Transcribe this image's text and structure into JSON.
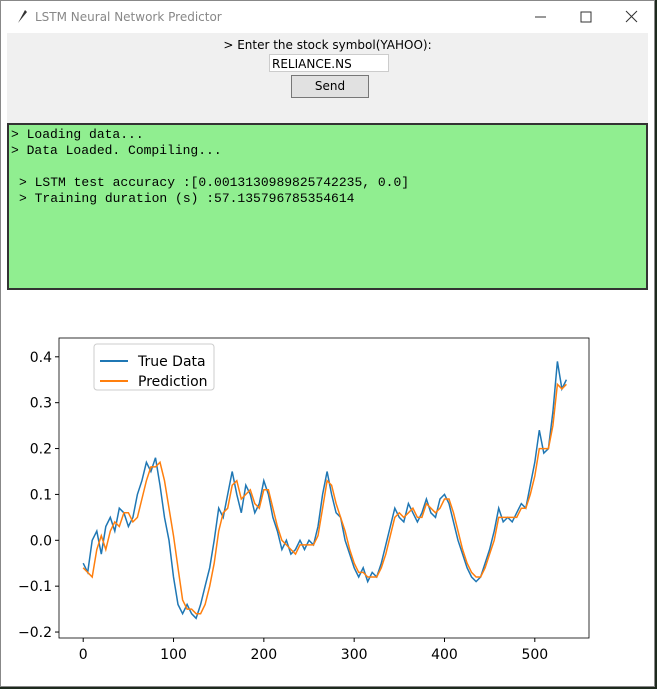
{
  "window": {
    "title": "LSTM Neural Network Predictor"
  },
  "form": {
    "label": "> Enter the stock symbol(YAHOO):",
    "input_value": "RELIANCE.NS",
    "button": "Send"
  },
  "console": {
    "lines": [
      "> Loading data...",
      "> Data Loaded. Compiling...",
      "> LSTM test accuracy :[0.0013130989825742235, 0.0]",
      "> Training duration (s) :57.135796785354614"
    ]
  },
  "chart_data": {
    "type": "line",
    "x": [
      0,
      5,
      10,
      15,
      20,
      25,
      30,
      35,
      40,
      45,
      50,
      55,
      60,
      65,
      70,
      75,
      80,
      85,
      90,
      95,
      100,
      105,
      110,
      115,
      120,
      125,
      130,
      135,
      140,
      145,
      150,
      155,
      160,
      165,
      170,
      175,
      180,
      185,
      190,
      195,
      200,
      205,
      210,
      215,
      220,
      225,
      230,
      235,
      240,
      245,
      250,
      255,
      260,
      265,
      270,
      275,
      280,
      285,
      290,
      295,
      300,
      305,
      310,
      315,
      320,
      325,
      330,
      335,
      340,
      345,
      350,
      355,
      360,
      365,
      370,
      375,
      380,
      385,
      390,
      395,
      400,
      405,
      410,
      415,
      420,
      425,
      430,
      435,
      440,
      445,
      450,
      455,
      460,
      465,
      470,
      475,
      480,
      485,
      490,
      495,
      500,
      505,
      510,
      515,
      520,
      525,
      530,
      535
    ],
    "series": [
      {
        "name": "True Data",
        "color": "#1f77b4",
        "values": [
          -0.05,
          -0.07,
          0.0,
          0.02,
          -0.03,
          0.03,
          0.05,
          0.02,
          0.07,
          0.06,
          0.03,
          0.05,
          0.1,
          0.13,
          0.17,
          0.15,
          0.18,
          0.12,
          0.05,
          0.0,
          -0.08,
          -0.14,
          -0.16,
          -0.14,
          -0.16,
          -0.17,
          -0.14,
          -0.1,
          -0.06,
          0.0,
          0.07,
          0.05,
          0.1,
          0.15,
          0.1,
          0.06,
          0.12,
          0.1,
          0.06,
          0.08,
          0.13,
          0.1,
          0.05,
          0.02,
          -0.02,
          0.0,
          -0.03,
          -0.02,
          0.0,
          -0.02,
          0.0,
          -0.01,
          0.03,
          0.1,
          0.15,
          0.1,
          0.06,
          0.05,
          0.0,
          -0.03,
          -0.06,
          -0.08,
          -0.06,
          -0.09,
          -0.07,
          -0.08,
          -0.05,
          -0.01,
          0.03,
          0.07,
          0.05,
          0.04,
          0.08,
          0.06,
          0.04,
          0.06,
          0.09,
          0.06,
          0.05,
          0.09,
          0.1,
          0.08,
          0.04,
          0.0,
          -0.03,
          -0.06,
          -0.08,
          -0.09,
          -0.08,
          -0.05,
          -0.02,
          0.02,
          0.07,
          0.04,
          0.05,
          0.04,
          0.06,
          0.08,
          0.07,
          0.12,
          0.17,
          0.24,
          0.19,
          0.2,
          0.28,
          0.39,
          0.33,
          0.35
        ]
      },
      {
        "name": "Prediction",
        "color": "#ff7f0e",
        "values": [
          -0.06,
          -0.07,
          -0.08,
          -0.02,
          0.01,
          -0.02,
          0.02,
          0.04,
          0.03,
          0.06,
          0.06,
          0.04,
          0.05,
          0.09,
          0.13,
          0.16,
          0.16,
          0.17,
          0.13,
          0.07,
          0.01,
          -0.06,
          -0.13,
          -0.15,
          -0.15,
          -0.16,
          -0.16,
          -0.14,
          -0.1,
          -0.05,
          0.02,
          0.06,
          0.07,
          0.12,
          0.13,
          0.09,
          0.1,
          0.11,
          0.08,
          0.07,
          0.11,
          0.11,
          0.07,
          0.03,
          0.0,
          -0.01,
          -0.02,
          -0.03,
          -0.01,
          -0.01,
          -0.01,
          -0.01,
          0.01,
          0.07,
          0.13,
          0.12,
          0.08,
          0.05,
          0.02,
          -0.02,
          -0.05,
          -0.07,
          -0.07,
          -0.08,
          -0.08,
          -0.08,
          -0.06,
          -0.03,
          0.01,
          0.05,
          0.06,
          0.05,
          0.06,
          0.07,
          0.05,
          0.05,
          0.08,
          0.07,
          0.06,
          0.07,
          0.09,
          0.09,
          0.06,
          0.02,
          -0.02,
          -0.05,
          -0.07,
          -0.08,
          -0.08,
          -0.06,
          -0.03,
          0.0,
          0.05,
          0.05,
          0.05,
          0.05,
          0.05,
          0.07,
          0.07,
          0.1,
          0.14,
          0.2,
          0.2,
          0.2,
          0.25,
          0.34,
          0.33,
          0.34
        ]
      }
    ],
    "xlim": [
      -26.8,
      560
    ],
    "ylim": [
      -0.213,
      0.441
    ],
    "xticks": [
      0,
      100,
      200,
      300,
      400,
      500
    ],
    "yticks": [
      {
        "value": -0.2,
        "label": "−0.2"
      },
      {
        "value": -0.1,
        "label": "−0.1"
      },
      {
        "value": 0,
        "label": "0.0"
      },
      0.1,
      0.2,
      0.3,
      0.4
    ],
    "legend": "upper left"
  }
}
